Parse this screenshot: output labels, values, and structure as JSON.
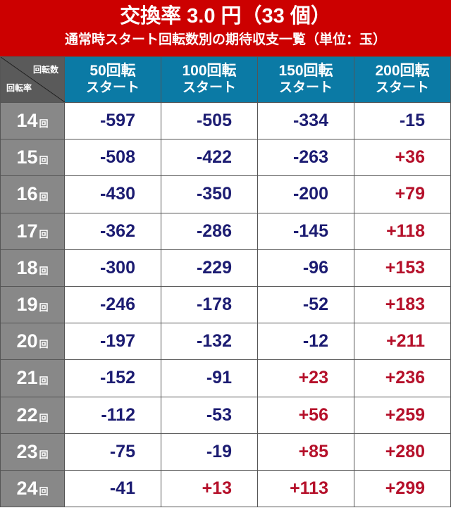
{
  "title": {
    "line1": "交換率 3.0 円（33 個）",
    "line2": "通常時スタート回転数別の期待収支一覧（単位：玉）"
  },
  "corner": {
    "top_label": "回転数",
    "bottom_label": "回転率"
  },
  "columns": [
    {
      "line1": "50回転",
      "line2": "スタート"
    },
    {
      "line1": "100回転",
      "line2": "スタート"
    },
    {
      "line1": "150回転",
      "line2": "スタート"
    },
    {
      "line1": "200回転",
      "line2": "スタート"
    }
  ],
  "row_unit": "回",
  "rows": [
    {
      "label": "14",
      "values": [
        "-597",
        "-505",
        "-334",
        "-15"
      ]
    },
    {
      "label": "15",
      "values": [
        "-508",
        "-422",
        "-263",
        "+36"
      ]
    },
    {
      "label": "16",
      "values": [
        "-430",
        "-350",
        "-200",
        "+79"
      ]
    },
    {
      "label": "17",
      "values": [
        "-362",
        "-286",
        "-145",
        "+118"
      ]
    },
    {
      "label": "18",
      "values": [
        "-300",
        "-229",
        "-96",
        "+153"
      ]
    },
    {
      "label": "19",
      "values": [
        "-246",
        "-178",
        "-52",
        "+183"
      ]
    },
    {
      "label": "20",
      "values": [
        "-197",
        "-132",
        "-12",
        "+211"
      ]
    },
    {
      "label": "21",
      "values": [
        "-152",
        "-91",
        "+23",
        "+236"
      ]
    },
    {
      "label": "22",
      "values": [
        "-112",
        "-53",
        "+56",
        "+259"
      ]
    },
    {
      "label": "23",
      "values": [
        "-75",
        "-19",
        "+85",
        "+280"
      ]
    },
    {
      "label": "24",
      "values": [
        "-41",
        "+13",
        "+113",
        "+299"
      ]
    }
  ],
  "colors": {
    "title_bg": "#cc0000",
    "header_bg": "#0b7aa5",
    "negative": "#1c1c72",
    "positive": "#b5102a"
  }
}
